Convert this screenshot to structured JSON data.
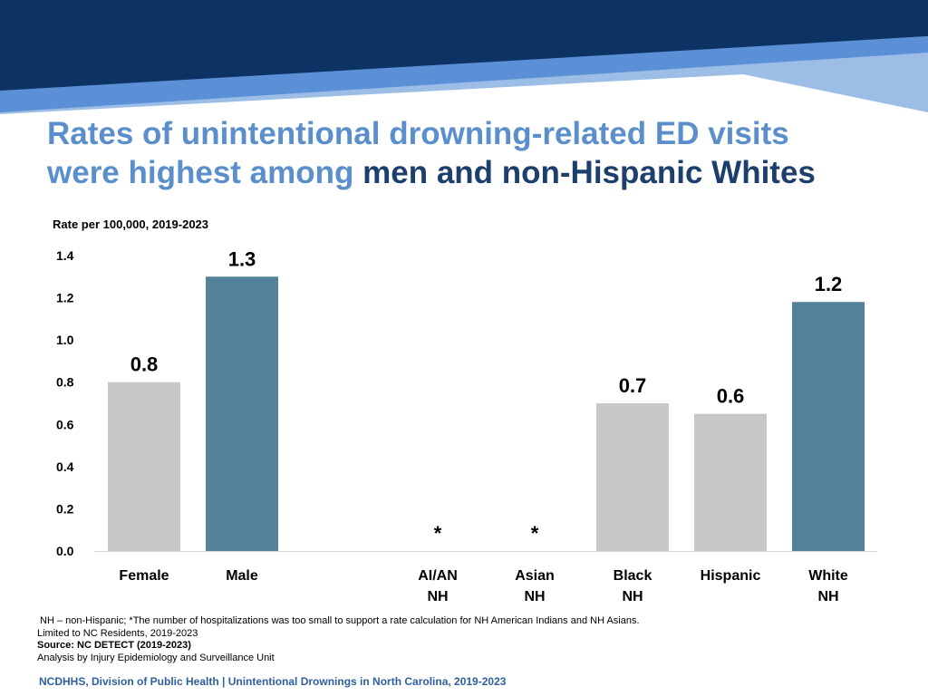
{
  "title": {
    "part1": "Rates of unintentional drowning-related ED visits",
    "part2": "were highest among ",
    "part3": "men and non-Hispanic Whites"
  },
  "colors": {
    "header_navy": "#0d3264",
    "header_blue": "#5b8fd6",
    "header_light": "#9cbde6",
    "bar_gray": "#c8c8c8",
    "bar_teal": "#52839a",
    "title_light": "#5b8fcc",
    "title_dark": "#1c3f6e",
    "footer_blue": "#2f5f9e"
  },
  "chart_data": {
    "type": "bar",
    "ylabel": "Rate per 100,000, 2019-2023",
    "ylim": [
      0,
      1.4
    ],
    "yticks": [
      "0.0",
      "0.2",
      "0.4",
      "0.6",
      "0.8",
      "1.0",
      "1.2",
      "1.4"
    ],
    "grid": false,
    "bars": [
      {
        "category": [
          "Female"
        ],
        "value": 0.8,
        "label": "0.8",
        "group": "sex",
        "highlight": false
      },
      {
        "category": [
          "Male"
        ],
        "value": 1.3,
        "label": "1.3",
        "group": "sex",
        "highlight": true
      },
      {
        "category": [
          "AI/AN",
          "NH"
        ],
        "value": null,
        "label": "*",
        "group": "race",
        "highlight": false
      },
      {
        "category": [
          "Asian",
          "NH"
        ],
        "value": null,
        "label": "*",
        "group": "race",
        "highlight": false
      },
      {
        "category": [
          "Black",
          "NH"
        ],
        "value": 0.7,
        "label": "0.7",
        "group": "race",
        "highlight": false
      },
      {
        "category": [
          "Hispanic"
        ],
        "value": 0.65,
        "label": "0.6",
        "group": "race",
        "highlight": false
      },
      {
        "category": [
          "White",
          "NH"
        ],
        "value": 1.18,
        "label": "1.2",
        "group": "race",
        "highlight": true
      }
    ]
  },
  "footnotes": {
    "line1": "NH – non-Hispanic; *The number of hospitalizations was too small to support a rate calculation for NH American Indians and NH Asians.",
    "line2": "Limited to NC Residents, 2019-2023",
    "line3": "Source: NC DETECT (2019-2023)",
    "line4": "Analysis by Injury Epidemiology and Surveillance Unit"
  },
  "footer": "NCDHHS, Division of Public Health | Unintentional Drownings in North Carolina, 2019-2023"
}
